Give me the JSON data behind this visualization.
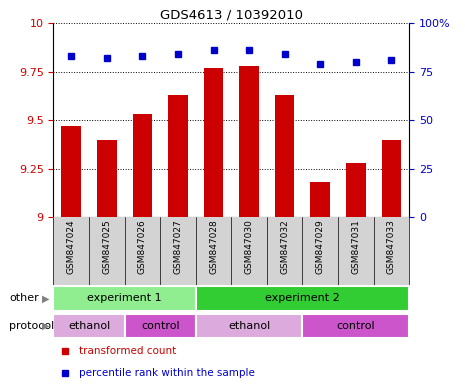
{
  "title": "GDS4613 / 10392010",
  "samples": [
    "GSM847024",
    "GSM847025",
    "GSM847026",
    "GSM847027",
    "GSM847028",
    "GSM847030",
    "GSM847032",
    "GSM847029",
    "GSM847031",
    "GSM847033"
  ],
  "transformed_count": [
    9.47,
    9.4,
    9.53,
    9.63,
    9.77,
    9.78,
    9.63,
    9.18,
    9.28,
    9.4
  ],
  "percentile_rank": [
    83,
    82,
    83,
    84,
    86,
    86,
    84,
    79,
    80,
    81
  ],
  "ylim_left": [
    9.0,
    10.0
  ],
  "ylim_right": [
    0,
    100
  ],
  "yticks_left": [
    9.0,
    9.25,
    9.5,
    9.75,
    10.0
  ],
  "ytick_labels_left": [
    "9",
    "9.25",
    "9.5",
    "9.75",
    "10"
  ],
  "yticks_right": [
    0,
    25,
    50,
    75,
    100
  ],
  "ytick_labels_right": [
    "0",
    "25",
    "50",
    "75",
    "100%"
  ],
  "bar_color": "#cc0000",
  "dot_color": "#0000cc",
  "bar_bottom": 9.0,
  "other_groups": [
    {
      "label": "experiment 1",
      "start": 0,
      "end": 4,
      "color": "#90ee90"
    },
    {
      "label": "experiment 2",
      "start": 4,
      "end": 10,
      "color": "#32cd32"
    }
  ],
  "protocol_groups": [
    {
      "label": "ethanol",
      "start": 0,
      "end": 2,
      "color": "#ddaadd"
    },
    {
      "label": "control",
      "start": 2,
      "end": 4,
      "color": "#cc55cc"
    },
    {
      "label": "ethanol",
      "start": 4,
      "end": 7,
      "color": "#ddaadd"
    },
    {
      "label": "control",
      "start": 7,
      "end": 10,
      "color": "#cc55cc"
    }
  ],
  "legend_items": [
    {
      "label": "transformed count",
      "color": "#cc0000"
    },
    {
      "label": "percentile rank within the sample",
      "color": "#0000cc"
    }
  ],
  "tick_color_left": "#cc0000",
  "tick_color_right": "#0000cc",
  "background_color": "#ffffff",
  "grid_color": "#000000",
  "sample_bg_color": "#d3d3d3",
  "bar_width": 0.55
}
